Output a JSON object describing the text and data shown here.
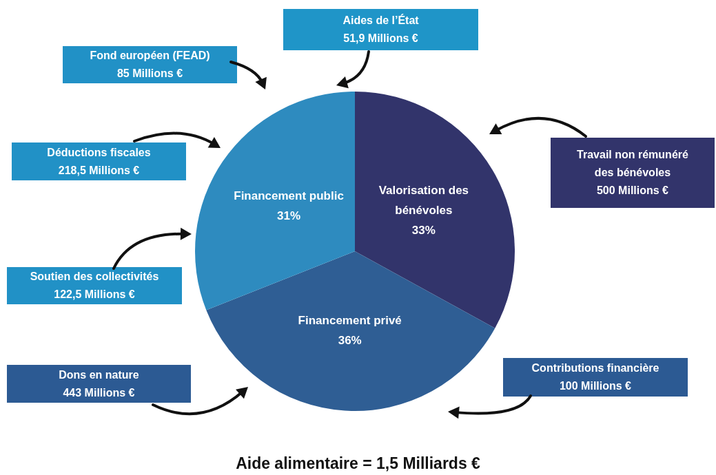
{
  "chart_data": {
    "type": "pie",
    "title": "Aide alimentaire = 1,5 Milliards €",
    "categories": [
      "Valorisation des bénévoles",
      "Financement privé",
      "Financement public"
    ],
    "values": [
      33,
      36,
      31
    ],
    "value_labels": [
      "33%",
      "36%",
      "31%"
    ],
    "colors": [
      "#32346b",
      "#2f5e94",
      "#2e8bbf"
    ],
    "legend": false,
    "annotations": [
      "Aides de l’État\n51,9 Millions €",
      "Fond européen (FEAD)\n85 Millions €",
      "Déductions fiscales\n218,5 Millions €",
      "Soutien des collectivités\n122,5 Millions €",
      "Dons en nature\n443 Millions €",
      "Contributions financière\n100 Millions €",
      "Travail non rémunéré\ndes bénévoles\n500 Millions €"
    ]
  }
}
